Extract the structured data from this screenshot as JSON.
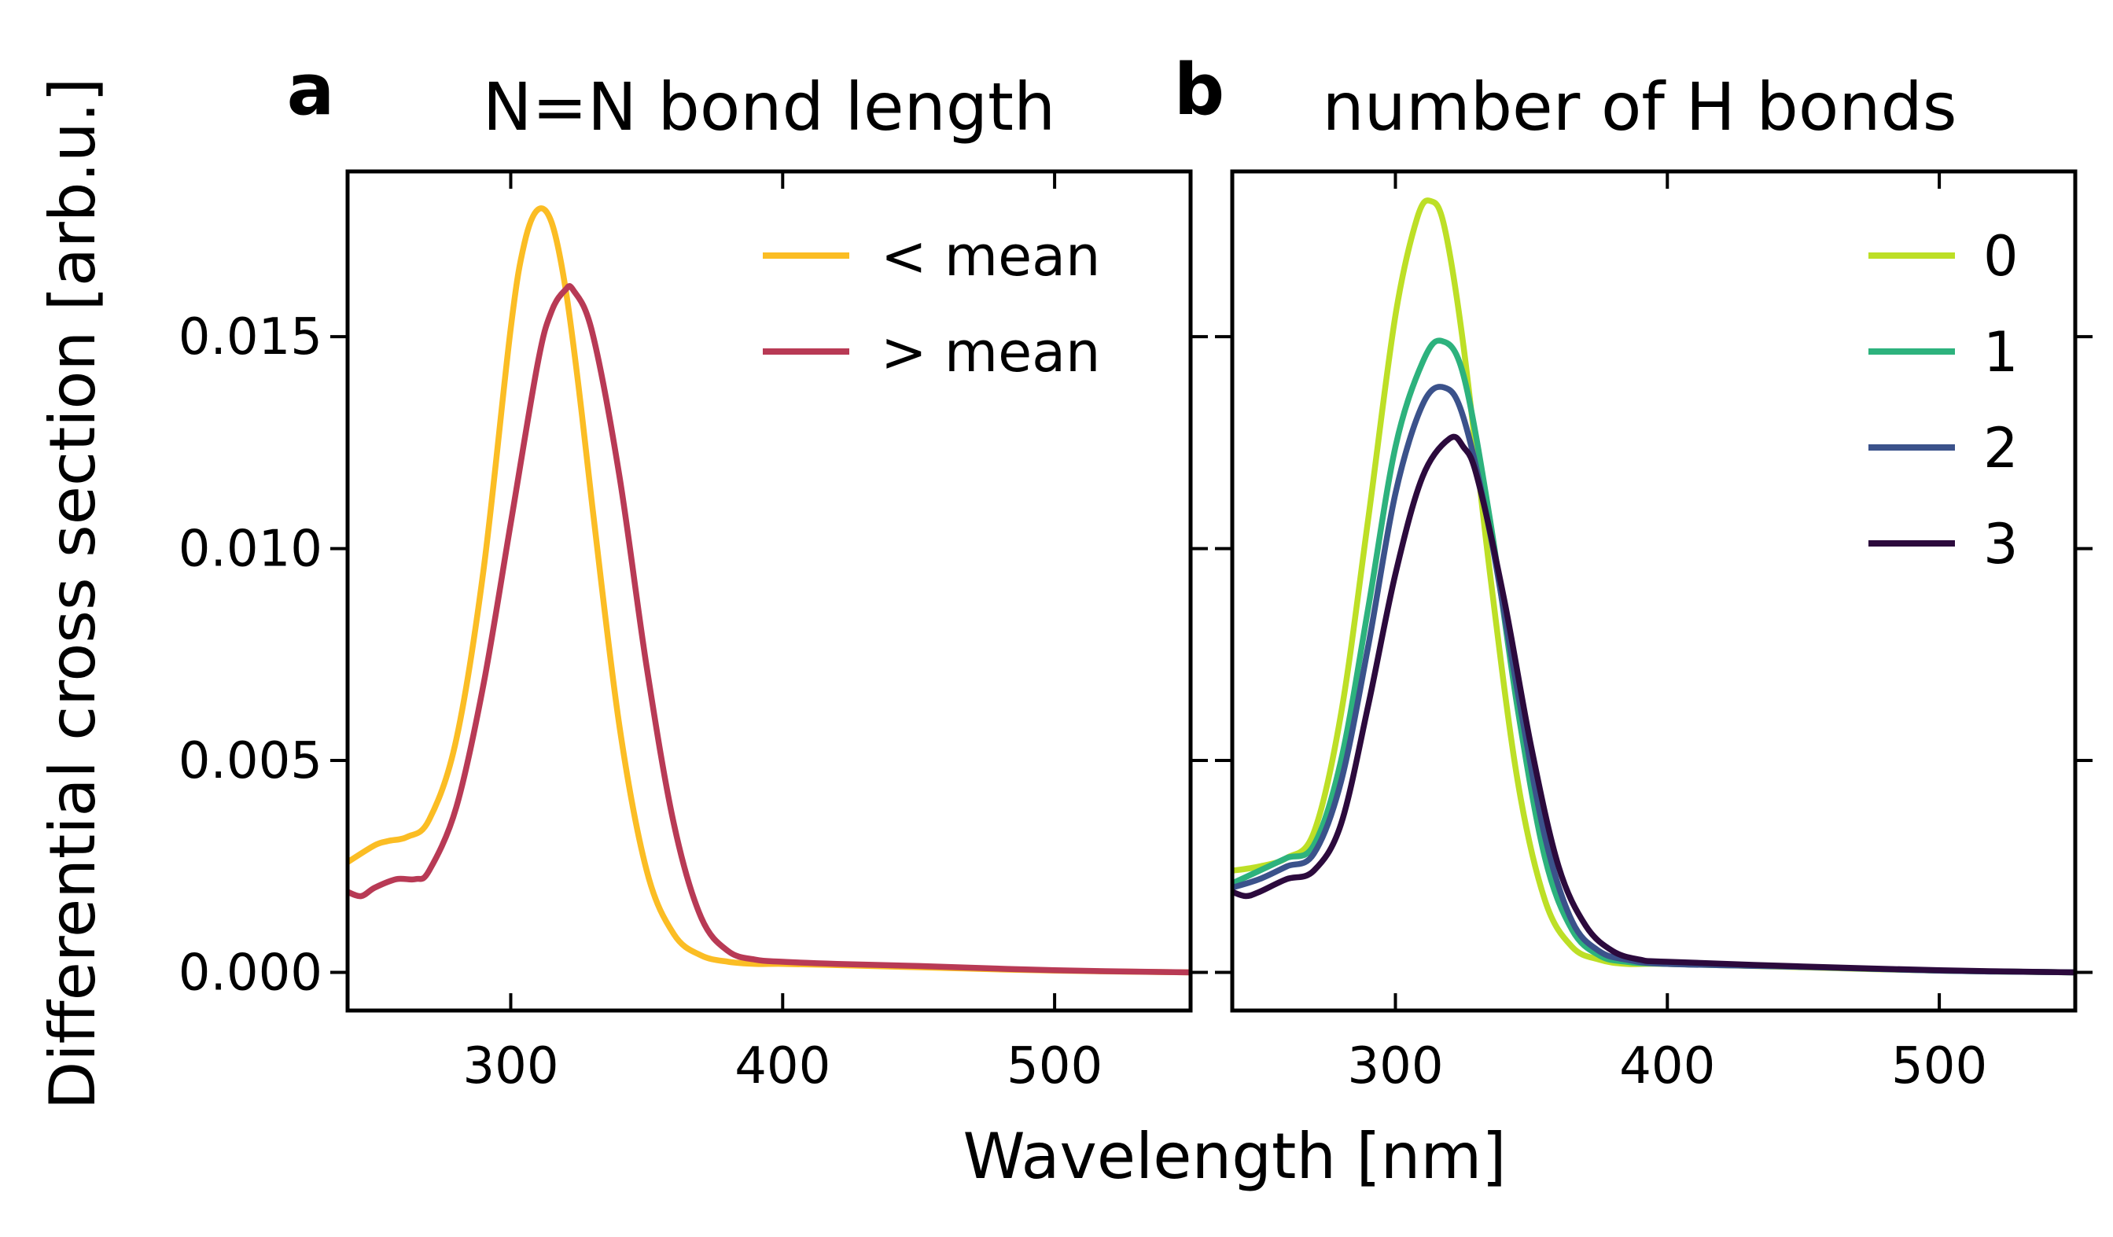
{
  "figure": {
    "xlabel": "Wavelength [nm]",
    "ylabel": "Differential cross section [arb.u.]"
  },
  "chart_data": [
    {
      "type": "line",
      "panel_letter": "a",
      "title": "N=N bond length",
      "xlabel": "Wavelength [nm]",
      "ylabel": "Differential cross section [arb.u.]",
      "xlim": [
        240,
        550
      ],
      "ylim": [
        -0.0009,
        0.0189
      ],
      "xticks": [
        300,
        400,
        500
      ],
      "yticks": [
        0.0,
        0.005,
        0.01,
        0.015
      ],
      "ytick_labels": [
        "0.000",
        "0.005",
        "0.010",
        "0.015"
      ],
      "legend_position": "top-right",
      "series": [
        {
          "name": "< mean",
          "color": "#fbbd24",
          "x": [
            240,
            250,
            255,
            262,
            270,
            280,
            290,
            300,
            305,
            310,
            315,
            320,
            325,
            330,
            340,
            350,
            360,
            370,
            380,
            390,
            400,
            420,
            450,
            500,
            550
          ],
          "y": [
            0.0026,
            0.003,
            0.0031,
            0.0032,
            0.0036,
            0.0055,
            0.0095,
            0.0152,
            0.0172,
            0.018,
            0.0177,
            0.0162,
            0.0138,
            0.011,
            0.0058,
            0.0024,
            0.0009,
            0.0004,
            0.00025,
            0.0002,
            0.0002,
            0.00017,
            0.00012,
            4e-05,
            0.0
          ]
        },
        {
          "name": "> mean",
          "color": "#b83a55",
          "x": [
            240,
            245,
            250,
            258,
            265,
            270,
            280,
            290,
            300,
            310,
            315,
            320,
            323,
            330,
            340,
            350,
            360,
            370,
            380,
            390,
            400,
            420,
            450,
            500,
            550
          ],
          "y": [
            0.0019,
            0.0018,
            0.002,
            0.0022,
            0.0022,
            0.0024,
            0.0039,
            0.0068,
            0.0106,
            0.0144,
            0.0156,
            0.0161,
            0.0161,
            0.0151,
            0.0117,
            0.0072,
            0.0035,
            0.0013,
            0.0005,
            0.0003,
            0.00025,
            0.0002,
            0.00015,
            5e-05,
            0.0
          ]
        }
      ]
    },
    {
      "type": "line",
      "panel_letter": "b",
      "title": "number of H bonds",
      "xlabel": "Wavelength [nm]",
      "xlim": [
        240,
        550
      ],
      "ylim": [
        -0.0009,
        0.0189
      ],
      "xticks": [
        300,
        400,
        500
      ],
      "yticks": [
        0.0,
        0.005,
        0.01,
        0.015
      ],
      "legend_position": "top-right",
      "series": [
        {
          "name": "0",
          "color": "#bddf26",
          "x": [
            240,
            250,
            260,
            270,
            280,
            290,
            300,
            308,
            313,
            318,
            325,
            335,
            345,
            355,
            365,
            375,
            385,
            400,
            450,
            500,
            550
          ],
          "y": [
            0.0024,
            0.0025,
            0.0027,
            0.0033,
            0.0061,
            0.0107,
            0.0155,
            0.0178,
            0.0182,
            0.0176,
            0.0148,
            0.0093,
            0.0045,
            0.0017,
            0.0006,
            0.0003,
            0.0002,
            0.0002,
            0.00012,
            4e-05,
            0.0
          ]
        },
        {
          "name": "1",
          "color": "#2db27d",
          "x": [
            240,
            250,
            260,
            270,
            280,
            290,
            300,
            310,
            317,
            325,
            335,
            345,
            355,
            365,
            375,
            385,
            400,
            450,
            500,
            550
          ],
          "y": [
            0.0021,
            0.0024,
            0.0027,
            0.003,
            0.005,
            0.0086,
            0.0124,
            0.0144,
            0.0149,
            0.0141,
            0.0106,
            0.0062,
            0.0027,
            0.001,
            0.0004,
            0.00025,
            0.0002,
            0.00013,
            4e-05,
            0.0
          ]
        },
        {
          "name": "2",
          "color": "#3b528b",
          "x": [
            240,
            250,
            260,
            270,
            280,
            290,
            300,
            310,
            318,
            325,
            335,
            345,
            355,
            365,
            375,
            385,
            400,
            450,
            500,
            550
          ],
          "y": [
            0.002,
            0.0022,
            0.0025,
            0.0028,
            0.0045,
            0.0077,
            0.0113,
            0.0134,
            0.0138,
            0.0131,
            0.0103,
            0.0066,
            0.0032,
            0.0012,
            0.0005,
            0.0003,
            0.0002,
            0.00013,
            4e-05,
            0.0
          ]
        },
        {
          "name": "3",
          "color": "#2c0a3d",
          "x": [
            240,
            245,
            250,
            260,
            270,
            280,
            290,
            300,
            310,
            320,
            325,
            330,
            340,
            350,
            360,
            370,
            380,
            390,
            400,
            450,
            500,
            550
          ],
          "y": [
            0.0019,
            0.0018,
            0.0019,
            0.0022,
            0.0024,
            0.0035,
            0.0063,
            0.0094,
            0.0117,
            0.0126,
            0.0124,
            0.0117,
            0.0088,
            0.0053,
            0.0025,
            0.0011,
            0.0005,
            0.0003,
            0.00025,
            0.00014,
            5e-05,
            0.0
          ]
        }
      ]
    }
  ]
}
